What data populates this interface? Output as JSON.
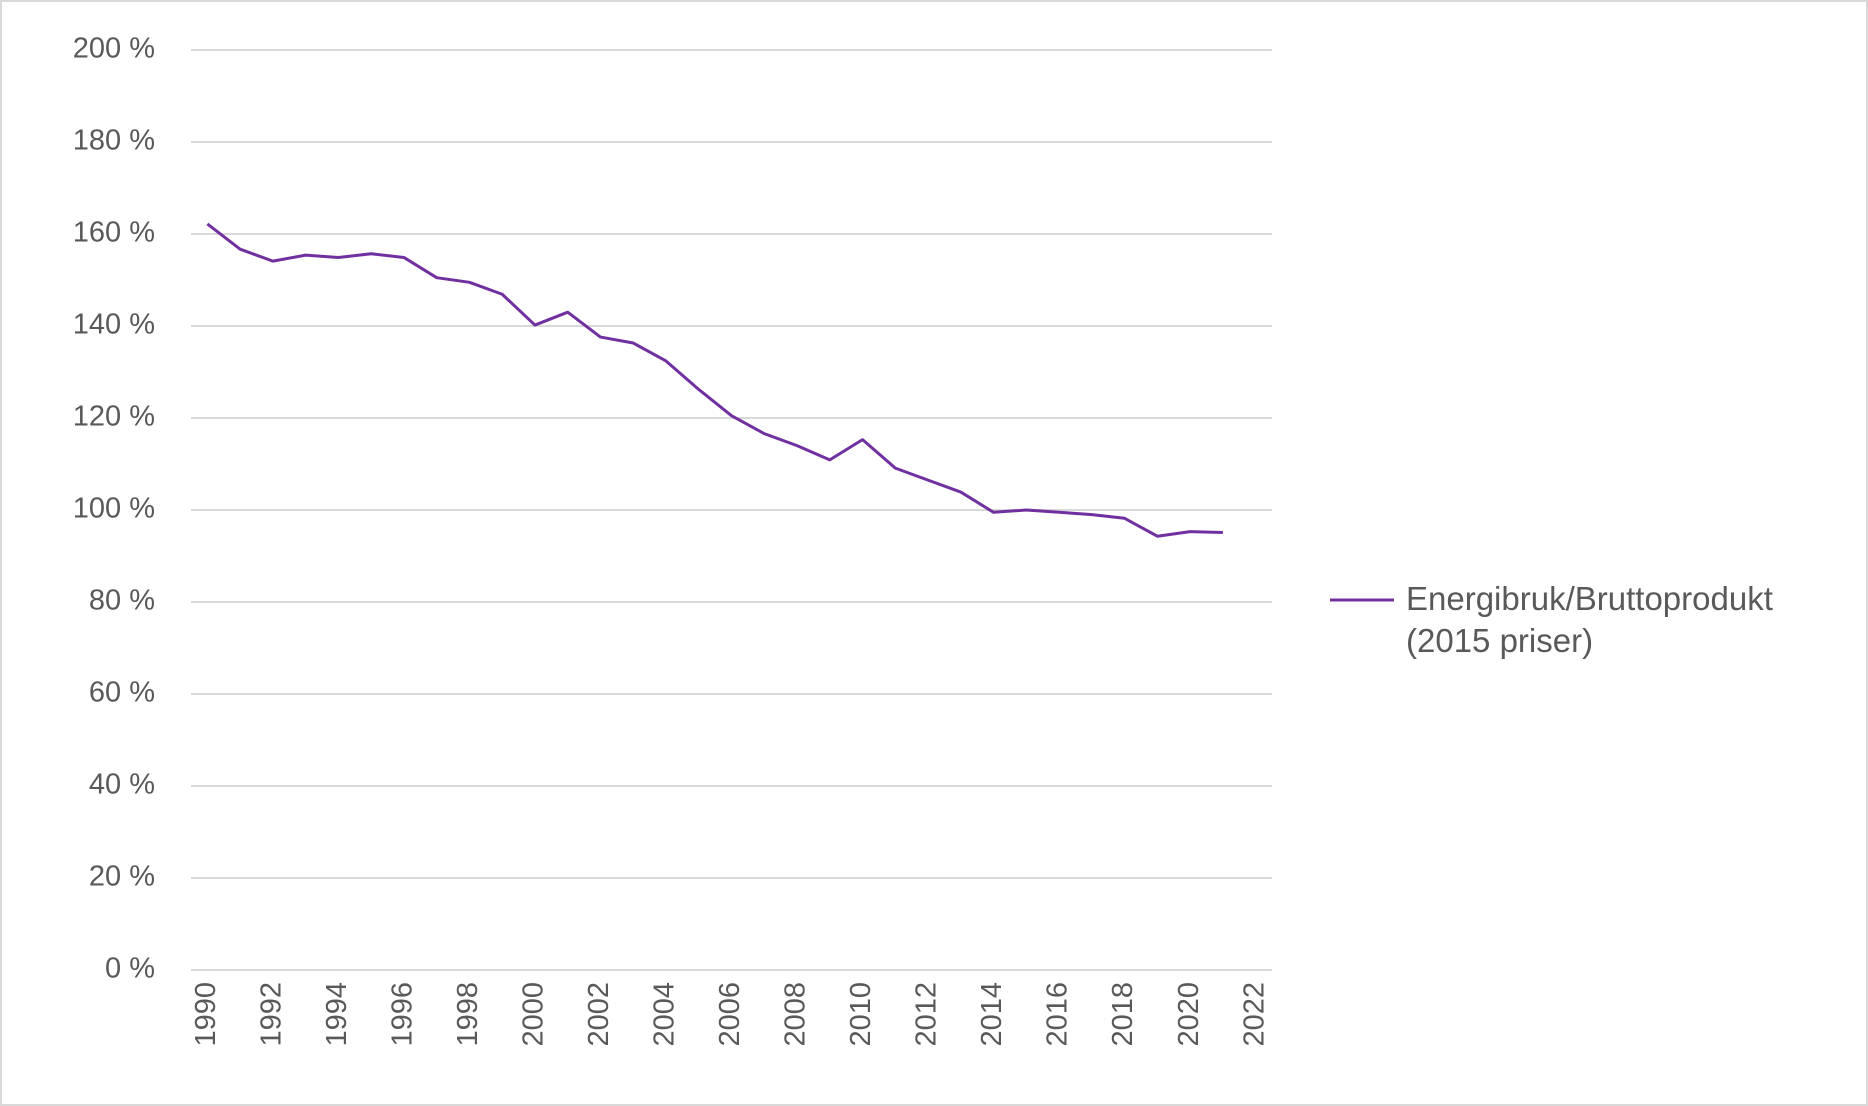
{
  "chart_data": {
    "type": "line",
    "x": [
      1990,
      1991,
      1992,
      1993,
      1994,
      1995,
      1996,
      1997,
      1998,
      1999,
      2000,
      2001,
      2002,
      2003,
      2004,
      2005,
      2006,
      2007,
      2008,
      2009,
      2010,
      2011,
      2012,
      2013,
      2014,
      2015,
      2016,
      2017,
      2018,
      2019,
      2020,
      2021
    ],
    "series": [
      {
        "name": "Energibruk/Bruttoprodukt (2015 priser)",
        "color": "#7030a0",
        "values": [
          162.2,
          156.7,
          154.1,
          155.4,
          154.9,
          155.7,
          154.9,
          150.5,
          149.5,
          146.9,
          140.2,
          143.0,
          137.6,
          136.3,
          132.4,
          126.2,
          120.5,
          116.6,
          114.0,
          110.9,
          115.3,
          109.1,
          106.5,
          103.9,
          99.5,
          100.0,
          99.5,
          99.0,
          98.2,
          94.3,
          95.3,
          95.1
        ]
      }
    ],
    "xlim": [
      1989.5,
      2022.5
    ],
    "xticks": [
      1990,
      1992,
      1994,
      1996,
      1998,
      2000,
      2002,
      2004,
      2006,
      2008,
      2010,
      2012,
      2014,
      2016,
      2018,
      2020,
      2022
    ],
    "ylim": [
      0,
      200
    ],
    "yticks": [
      {
        "value": 0,
        "label": "0 %"
      },
      {
        "value": 20,
        "label": "20 %"
      },
      {
        "value": 40,
        "label": "40 %"
      },
      {
        "value": 60,
        "label": "60 %"
      },
      {
        "value": 80,
        "label": "80 %"
      },
      {
        "value": 100,
        "label": "100 %"
      },
      {
        "value": 120,
        "label": "120 %"
      },
      {
        "value": 140,
        "label": "140 %"
      },
      {
        "value": 160,
        "label": "160 %"
      },
      {
        "value": 180,
        "label": "180 %"
      },
      {
        "value": 200,
        "label": "200 %"
      }
    ],
    "grid": true,
    "legend": "right"
  }
}
